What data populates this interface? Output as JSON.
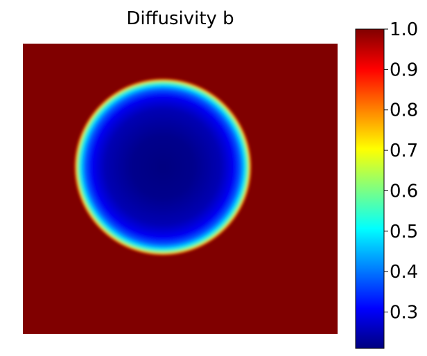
{
  "chart_data": {
    "type": "heatmap",
    "title": "Diffusivity b",
    "xlabel": "",
    "ylabel": "",
    "axes_visible": false,
    "grid": false,
    "colormap": "jet",
    "value_range": [
      0.21,
      1.0
    ],
    "background_value": 1.0,
    "features": [
      {
        "shape": "disk",
        "center": [
          0.445,
          0.575
        ],
        "radius": 0.28,
        "inner_value": 0.21,
        "edge_value": 0.6,
        "outside_value": 1.0
      }
    ],
    "colorbar": {
      "location": "right",
      "ticks": [
        0.3,
        0.4,
        0.5,
        0.6,
        0.7,
        0.8,
        0.9,
        1.0
      ],
      "tick_labels": [
        "0.3",
        "0.4",
        "0.5",
        "0.6",
        "0.7",
        "0.8",
        "0.9",
        "1.0"
      ]
    }
  }
}
